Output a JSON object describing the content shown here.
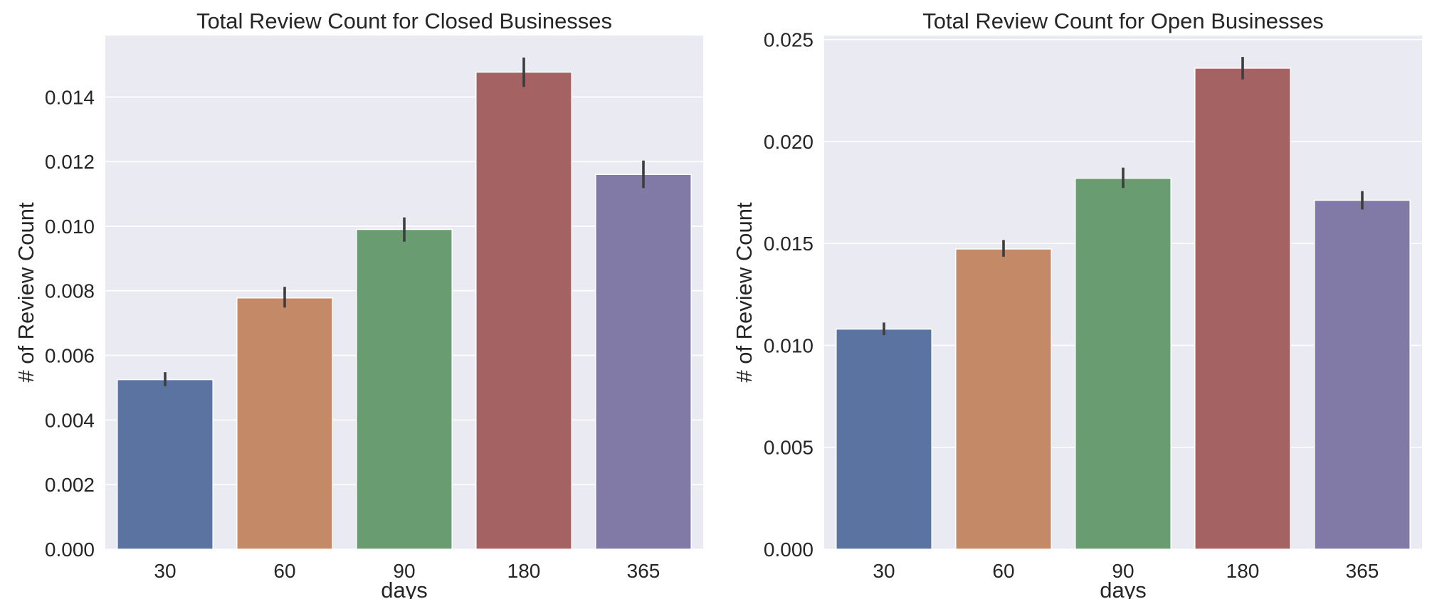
{
  "chart_data": [
    {
      "type": "bar",
      "title": "Total Review Count for Closed Businesses",
      "xlabel": "days",
      "ylabel": "# of Review Count",
      "categories": [
        "30",
        "60",
        "90",
        "180",
        "365"
      ],
      "values": [
        0.00525,
        0.00778,
        0.0099,
        0.01477,
        0.0116
      ],
      "errors": [
        [
          0.00505,
          0.00548
        ],
        [
          0.00748,
          0.00812
        ],
        [
          0.00952,
          0.01027
        ],
        [
          0.01431,
          0.01522
        ],
        [
          0.01118,
          0.01203
        ]
      ],
      "colors": [
        "#5b73a0",
        "#c48a67",
        "#6a9c72",
        "#a56262",
        "#817aa6"
      ],
      "ylim": [
        0,
        0.0159
      ],
      "yticks": [
        "0.000",
        "0.002",
        "0.004",
        "0.006",
        "0.008",
        "0.010",
        "0.012",
        "0.014"
      ],
      "grid": true,
      "background": "#eaeaf2"
    },
    {
      "type": "bar",
      "title": "Total Review Count for Open Businesses",
      "xlabel": "days",
      "ylabel": "# of Review Count",
      "categories": [
        "30",
        "60",
        "90",
        "180",
        "365"
      ],
      "values": [
        0.0108,
        0.01473,
        0.0182,
        0.0236,
        0.01712
      ],
      "errors": [
        [
          0.0105,
          0.01112
        ],
        [
          0.01435,
          0.01517
        ],
        [
          0.01772,
          0.01872
        ],
        [
          0.02305,
          0.02415
        ],
        [
          0.01667,
          0.01757
        ]
      ],
      "colors": [
        "#5b73a0",
        "#c48a67",
        "#6a9c72",
        "#a56262",
        "#817aa6"
      ],
      "ylim": [
        0,
        0.0252
      ],
      "yticks": [
        "0.000",
        "0.005",
        "0.010",
        "0.015",
        "0.020",
        "0.025"
      ],
      "grid": true,
      "background": "#eaeaf2"
    }
  ]
}
